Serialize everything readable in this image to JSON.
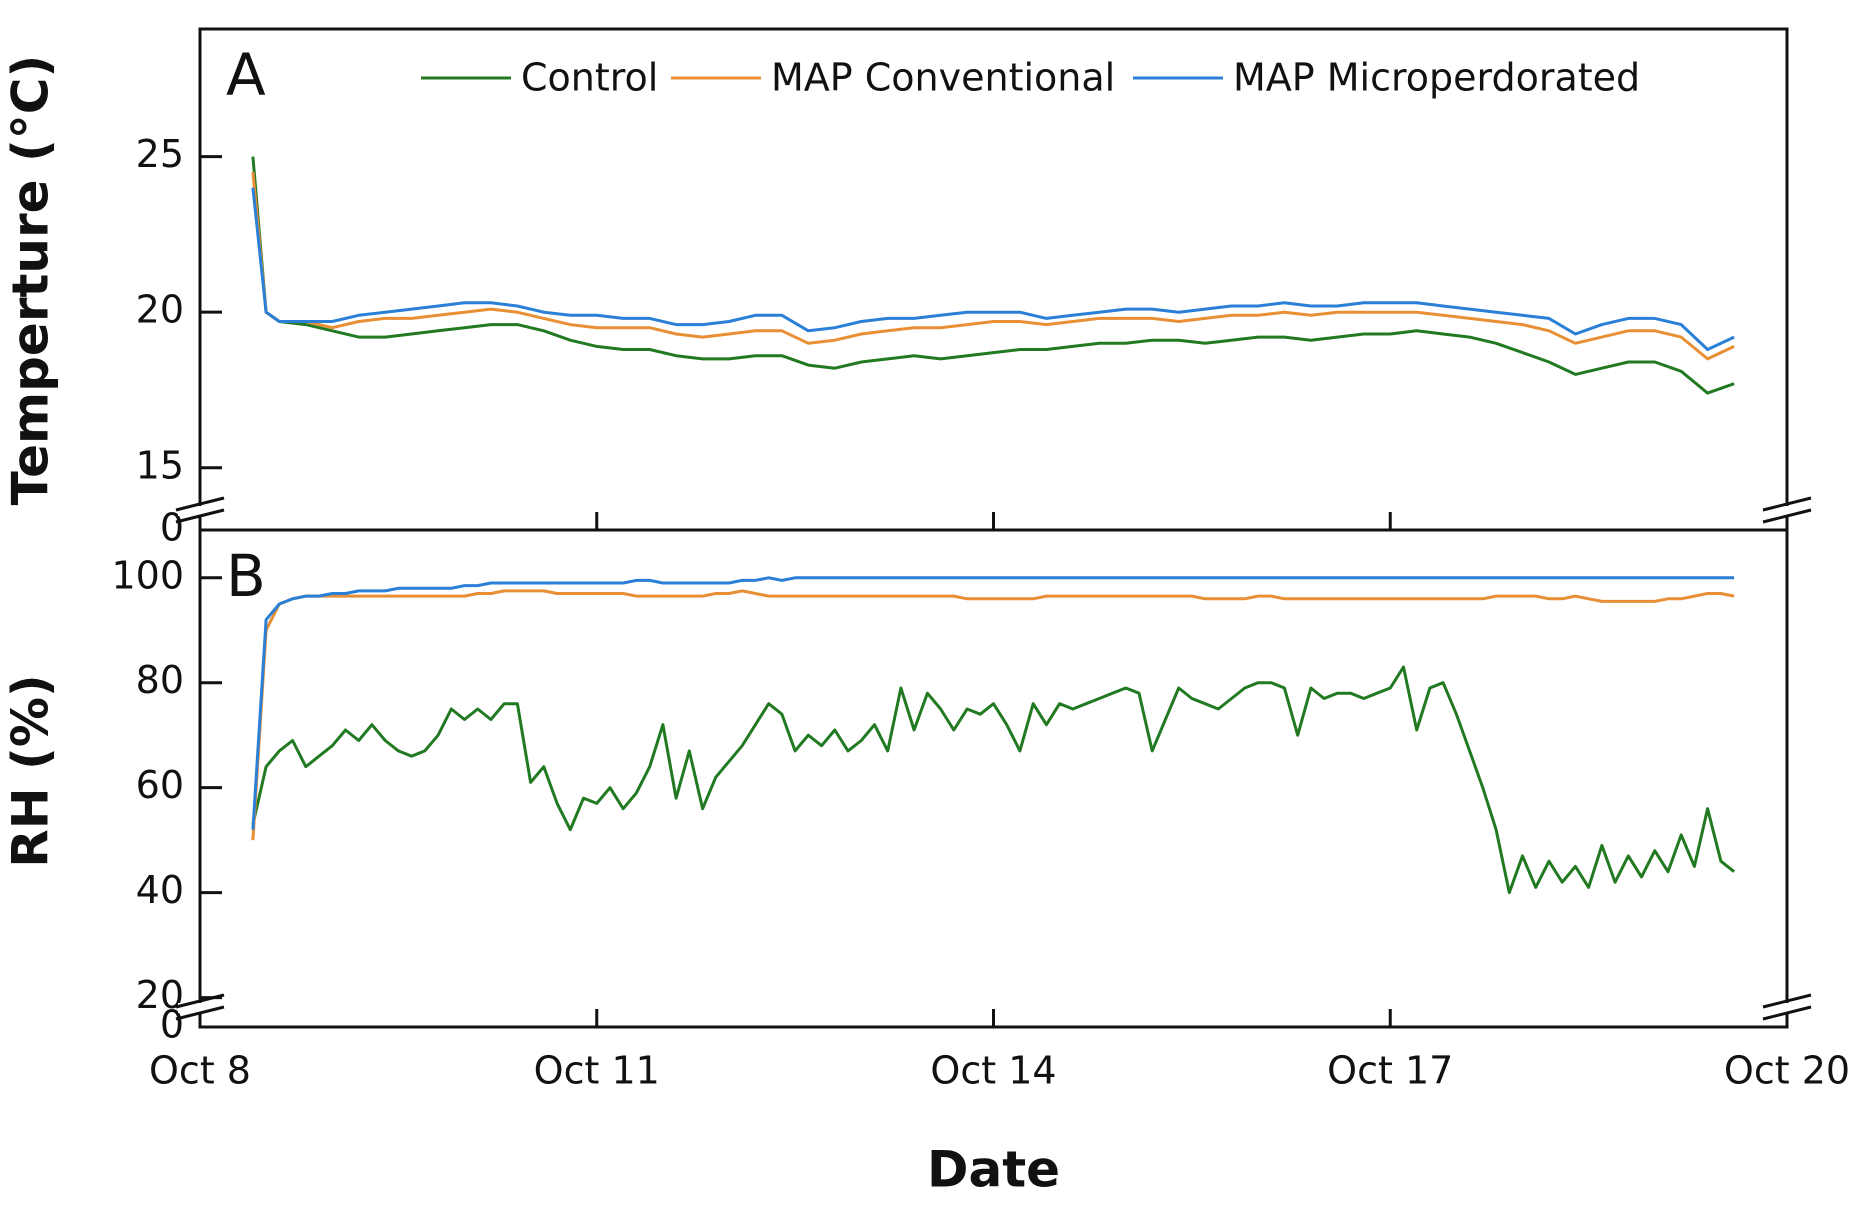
{
  "chart_data": [
    {
      "type": "line",
      "panel_label": "A",
      "ylabel": "Temperture (°C)",
      "x": [
        8.4,
        8.5,
        8.6,
        8.8,
        9.0,
        9.2,
        9.4,
        9.6,
        9.8,
        10.0,
        10.2,
        10.4,
        10.6,
        10.8,
        11.0,
        11.2,
        11.4,
        11.6,
        11.8,
        12.0,
        12.2,
        12.4,
        12.6,
        12.8,
        13.0,
        13.2,
        13.4,
        13.6,
        13.8,
        14.0,
        14.2,
        14.4,
        14.6,
        14.8,
        15.0,
        15.2,
        15.4,
        15.6,
        15.8,
        16.0,
        16.2,
        16.4,
        16.6,
        16.8,
        17.0,
        17.2,
        17.4,
        17.6,
        17.8,
        18.0,
        18.2,
        18.4,
        18.6,
        18.8,
        19.0,
        19.2,
        19.4,
        19.6
      ],
      "series": [
        {
          "name": "Control",
          "color": "#217a21",
          "values": [
            25.0,
            20.0,
            19.7,
            19.6,
            19.4,
            19.2,
            19.2,
            19.3,
            19.4,
            19.5,
            19.6,
            19.6,
            19.4,
            19.1,
            18.9,
            18.8,
            18.8,
            18.6,
            18.5,
            18.5,
            18.6,
            18.6,
            18.3,
            18.2,
            18.4,
            18.5,
            18.6,
            18.5,
            18.6,
            18.7,
            18.8,
            18.8,
            18.9,
            19.0,
            19.0,
            19.1,
            19.1,
            19.0,
            19.1,
            19.2,
            19.2,
            19.1,
            19.2,
            19.3,
            19.3,
            19.4,
            19.3,
            19.2,
            19.0,
            18.7,
            18.4,
            18.0,
            18.2,
            18.4,
            18.4,
            18.1,
            17.4,
            17.7
          ]
        },
        {
          "name": "MAP Conventional",
          "color": "#e88f35",
          "values": [
            24.5,
            20.0,
            19.7,
            19.7,
            19.5,
            19.7,
            19.8,
            19.8,
            19.9,
            20.0,
            20.1,
            20.0,
            19.8,
            19.6,
            19.5,
            19.5,
            19.5,
            19.3,
            19.2,
            19.3,
            19.4,
            19.4,
            19.0,
            19.1,
            19.3,
            19.4,
            19.5,
            19.5,
            19.6,
            19.7,
            19.7,
            19.6,
            19.7,
            19.8,
            19.8,
            19.8,
            19.7,
            19.8,
            19.9,
            19.9,
            20.0,
            19.9,
            20.0,
            20.0,
            20.0,
            20.0,
            19.9,
            19.8,
            19.7,
            19.6,
            19.4,
            19.0,
            19.2,
            19.4,
            19.4,
            19.2,
            18.5,
            18.9
          ]
        },
        {
          "name": "MAP Microperdorated",
          "color": "#2a7fd6",
          "values": [
            24.0,
            20.0,
            19.7,
            19.7,
            19.7,
            19.9,
            20.0,
            20.1,
            20.2,
            20.3,
            20.3,
            20.2,
            20.0,
            19.9,
            19.9,
            19.8,
            19.8,
            19.6,
            19.6,
            19.7,
            19.9,
            19.9,
            19.4,
            19.5,
            19.7,
            19.8,
            19.8,
            19.9,
            20.0,
            20.0,
            20.0,
            19.8,
            19.9,
            20.0,
            20.1,
            20.1,
            20.0,
            20.1,
            20.2,
            20.2,
            20.3,
            20.2,
            20.2,
            20.3,
            20.3,
            20.3,
            20.2,
            20.1,
            20.0,
            19.9,
            19.8,
            19.3,
            19.6,
            19.8,
            19.8,
            19.6,
            18.8,
            19.2
          ]
        }
      ],
      "xlim": [
        8,
        20
      ],
      "xticks": [
        8,
        11,
        14,
        17,
        20
      ],
      "ylim": [
        13,
        29.1
      ],
      "yticks": [
        15,
        20,
        25
      ],
      "axis_break_label": "0"
    },
    {
      "type": "line",
      "panel_label": "B",
      "ylabel": "RH (%)",
      "xlabel": "Date",
      "x": [
        8.4,
        8.5,
        8.6,
        8.7,
        8.8,
        8.9,
        9.0,
        9.1,
        9.2,
        9.3,
        9.4,
        9.5,
        9.6,
        9.7,
        9.8,
        9.9,
        10.0,
        10.1,
        10.2,
        10.3,
        10.4,
        10.5,
        10.6,
        10.7,
        10.8,
        10.9,
        11.0,
        11.1,
        11.2,
        11.3,
        11.4,
        11.5,
        11.6,
        11.7,
        11.8,
        11.9,
        12.0,
        12.1,
        12.2,
        12.3,
        12.4,
        12.5,
        12.6,
        12.7,
        12.8,
        12.9,
        13.0,
        13.1,
        13.2,
        13.3,
        13.4,
        13.5,
        13.6,
        13.7,
        13.8,
        13.9,
        14.0,
        14.1,
        14.2,
        14.3,
        14.4,
        14.5,
        14.6,
        14.7,
        14.8,
        14.9,
        15.0,
        15.1,
        15.2,
        15.3,
        15.4,
        15.5,
        15.6,
        15.7,
        15.8,
        15.9,
        16.0,
        16.1,
        16.2,
        16.3,
        16.4,
        16.5,
        16.6,
        16.7,
        16.8,
        16.9,
        17.0,
        17.1,
        17.2,
        17.3,
        17.4,
        17.5,
        17.6,
        17.7,
        17.8,
        17.9,
        18.0,
        18.1,
        18.2,
        18.3,
        18.4,
        18.5,
        18.6,
        18.7,
        18.8,
        18.9,
        19.0,
        19.1,
        19.2,
        19.3,
        19.4,
        19.5,
        19.6
      ],
      "series": [
        {
          "color": "#217a21",
          "values": [
            53,
            64,
            67,
            69,
            64,
            66,
            68,
            71,
            69,
            72,
            69,
            67,
            66,
            67,
            70,
            75,
            73,
            75,
            73,
            76,
            76,
            61,
            64,
            57,
            52,
            58,
            57,
            60,
            56,
            59,
            64,
            72,
            58,
            67,
            56,
            62,
            65,
            68,
            72,
            76,
            74,
            67,
            70,
            68,
            71,
            67,
            69,
            72,
            67,
            79,
            71,
            78,
            75,
            71,
            75,
            74,
            76,
            72,
            67,
            76,
            72,
            76,
            75,
            76,
            77,
            78,
            79,
            78,
            67,
            73,
            79,
            77,
            76,
            75,
            77,
            79,
            80,
            80,
            79,
            70,
            79,
            77,
            78,
            78,
            77,
            78,
            79,
            83,
            71,
            79,
            80,
            74,
            67,
            60,
            52,
            40,
            47,
            41,
            46,
            42,
            45,
            41,
            49,
            42,
            47,
            43,
            48,
            44,
            51,
            45,
            56,
            46,
            44
          ]
        },
        {
          "color": "#e88f35",
          "values": [
            50,
            90,
            95,
            96,
            96.5,
            96.5,
            96.5,
            96.5,
            96.5,
            96.5,
            96.5,
            96.5,
            96.5,
            96.5,
            96.5,
            96.5,
            96.5,
            97,
            97,
            97.5,
            97.5,
            97.5,
            97.5,
            97,
            97,
            97,
            97,
            97,
            97,
            96.5,
            96.5,
            96.5,
            96.5,
            96.5,
            96.5,
            97,
            97,
            97.5,
            97,
            96.5,
            96.5,
            96.5,
            96.5,
            96.5,
            96.5,
            96.5,
            96.5,
            96.5,
            96.5,
            96.5,
            96.5,
            96.5,
            96.5,
            96.5,
            96,
            96,
            96,
            96,
            96,
            96,
            96.5,
            96.5,
            96.5,
            96.5,
            96.5,
            96.5,
            96.5,
            96.5,
            96.5,
            96.5,
            96.5,
            96.5,
            96,
            96,
            96,
            96,
            96.5,
            96.5,
            96,
            96,
            96,
            96,
            96,
            96,
            96,
            96,
            96,
            96,
            96,
            96,
            96,
            96,
            96,
            96,
            96.5,
            96.5,
            96.5,
            96.5,
            96,
            96,
            96.5,
            96,
            95.5,
            95.5,
            95.5,
            95.5,
            95.5,
            96,
            96,
            96.5,
            97,
            97,
            96.5
          ]
        },
        {
          "color": "#2a7fd6",
          "values": [
            52,
            92,
            95,
            96,
            96.5,
            96.5,
            97,
            97,
            97.5,
            97.5,
            97.5,
            98,
            98,
            98,
            98,
            98,
            98.5,
            98.5,
            99,
            99,
            99,
            99,
            99,
            99,
            99,
            99,
            99,
            99,
            99,
            99.5,
            99.5,
            99,
            99,
            99,
            99,
            99,
            99,
            99.5,
            99.5,
            100,
            99.5,
            100,
            100,
            100,
            100,
            100,
            100,
            100,
            100,
            100,
            100,
            100,
            100,
            100,
            100,
            100,
            100,
            100,
            100,
            100,
            100,
            100,
            100,
            100,
            100,
            100,
            100,
            100,
            100,
            100,
            100,
            100,
            100,
            100,
            100,
            100,
            100,
            100,
            100,
            100,
            100,
            100,
            100,
            100,
            100,
            100,
            100,
            100,
            100,
            100,
            100,
            100,
            100,
            100,
            100,
            100,
            100,
            100,
            100,
            100,
            100,
            100,
            100,
            100,
            100,
            100,
            100,
            100,
            100,
            100,
            100,
            100,
            100
          ]
        }
      ],
      "xlim": [
        8,
        20
      ],
      "xticks": [
        {
          "value": 8,
          "label": "Oct 8"
        },
        {
          "value": 11,
          "label": "Oct 11"
        },
        {
          "value": 14,
          "label": "Oct 14"
        },
        {
          "value": 17,
          "label": "Oct 17"
        },
        {
          "value": 20,
          "label": "Oct 20"
        }
      ],
      "ylim": [
        14.4,
        109.1
      ],
      "yticks": [
        20,
        40,
        60,
        80,
        100
      ],
      "axis_break_label": "0"
    }
  ]
}
